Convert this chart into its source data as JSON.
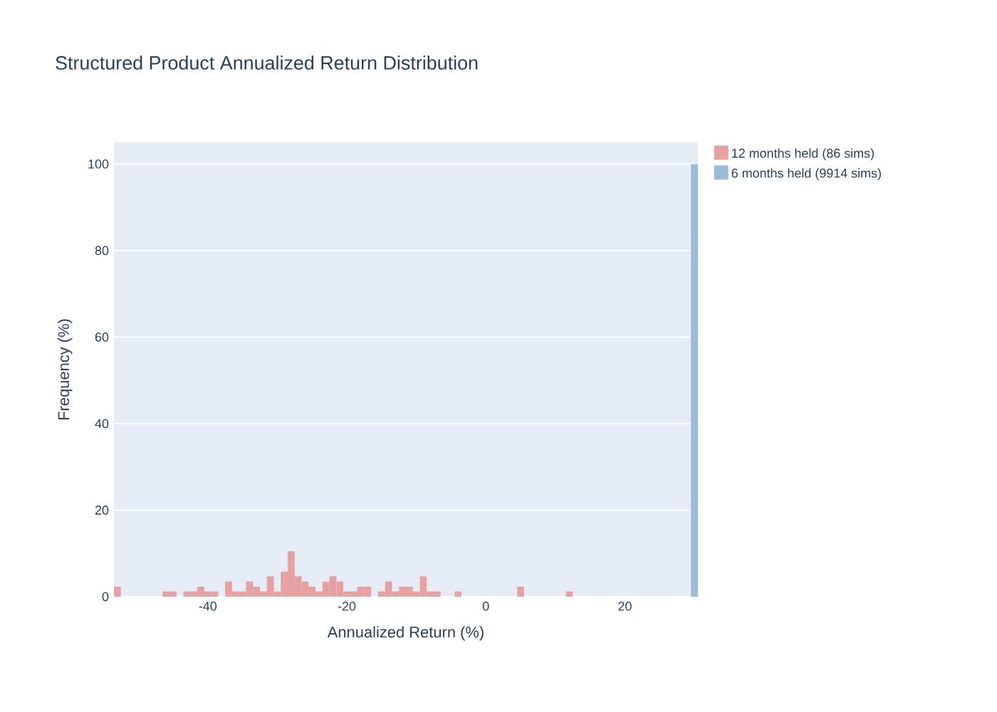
{
  "chart_data": {
    "type": "histogram",
    "title": "Structured Product Annualized Return Distribution",
    "xlabel": "Annualized Return (%)",
    "ylabel": "Frequency (%)",
    "bins": [
      -53.5,
      -52.5,
      -51.5,
      -50.5,
      -49.5,
      -48.5,
      -47.5,
      -46.5,
      -45.5,
      -44.5,
      -43.5,
      -42.5,
      -41.5,
      -40.5,
      -39.5,
      -38.5,
      -37.5,
      -36.5,
      -35.5,
      -34.5,
      -33.5,
      -32.5,
      -31.5,
      -30.5,
      -29.5,
      -28.5,
      -27.5,
      -26.5,
      -25.5,
      -24.5,
      -23.5,
      -22.5,
      -21.5,
      -20.5,
      -19.5,
      -18.5,
      -17.5,
      -16.5,
      -15.5,
      -14.5,
      -13.5,
      -12.5,
      -11.5,
      -10.5,
      -9.5,
      -8.5,
      -7.5,
      -6.5,
      -5.5,
      -4.5,
      -3.5,
      -2.5,
      -1.5,
      -0.5,
      0.5,
      1.5,
      2.5,
      3.5,
      4.5,
      5.5,
      6.5,
      7.5,
      8.5,
      9.5,
      10.5,
      11.5,
      12.5,
      13.5,
      14.5,
      15.5,
      16.5,
      17.5,
      18.5,
      19.5,
      20.5,
      21.5,
      22.5,
      23.5,
      24.5,
      25.5,
      26.5,
      27.5,
      28.5,
      29.5,
      30.5
    ],
    "series": [
      {
        "name": "12 months held (86 sims)",
        "color": "#e6a1a3",
        "values": [
          2.3,
          0,
          0,
          0,
          0,
          0,
          0,
          1.2,
          1.2,
          0,
          1.2,
          1.2,
          2.3,
          1.2,
          1.2,
          0,
          3.5,
          1.2,
          1.2,
          3.5,
          2.3,
          1.2,
          4.7,
          1.2,
          5.8,
          10.5,
          4.7,
          3.5,
          2.3,
          1.2,
          3.5,
          4.7,
          3.5,
          1.2,
          1.2,
          2.3,
          2.3,
          0,
          1.2,
          3.5,
          1.2,
          2.3,
          2.3,
          1.2,
          4.7,
          1.2,
          1.2,
          0,
          0,
          1.2,
          0,
          0,
          0,
          0,
          0,
          0,
          0,
          0,
          2.3,
          0,
          0,
          0,
          0,
          0,
          0,
          1.2,
          0,
          0,
          0,
          0,
          0,
          0,
          0,
          0,
          0,
          0,
          0,
          0,
          0,
          0,
          0,
          0,
          0,
          0
        ]
      },
      {
        "name": "6 months held (9914 sims)",
        "color": "#9bbbda",
        "values": [
          0,
          0,
          0,
          0,
          0,
          0,
          0,
          0,
          0,
          0,
          0,
          0,
          0,
          0,
          0,
          0,
          0,
          0,
          0,
          0,
          0,
          0,
          0,
          0,
          0,
          0,
          0,
          0,
          0,
          0,
          0,
          0,
          0,
          0,
          0,
          0,
          0,
          0,
          0,
          0,
          0,
          0,
          0,
          0,
          0,
          0,
          0,
          0,
          0,
          0,
          0,
          0,
          0,
          0,
          0,
          0,
          0,
          0,
          0,
          0,
          0,
          0,
          0,
          0,
          0,
          0,
          0,
          0,
          0,
          0,
          0,
          0,
          0,
          0,
          0,
          0,
          0,
          0,
          0,
          0,
          0,
          0,
          0,
          100
        ]
      }
    ],
    "xlim": [
      -53.5,
      30.5
    ],
    "ylim": [
      0,
      105
    ],
    "xticks": [
      -40,
      -20,
      0,
      20
    ],
    "yticks": [
      0,
      20,
      40,
      60,
      80,
      100
    ],
    "grid": "y",
    "legend": "top right"
  }
}
